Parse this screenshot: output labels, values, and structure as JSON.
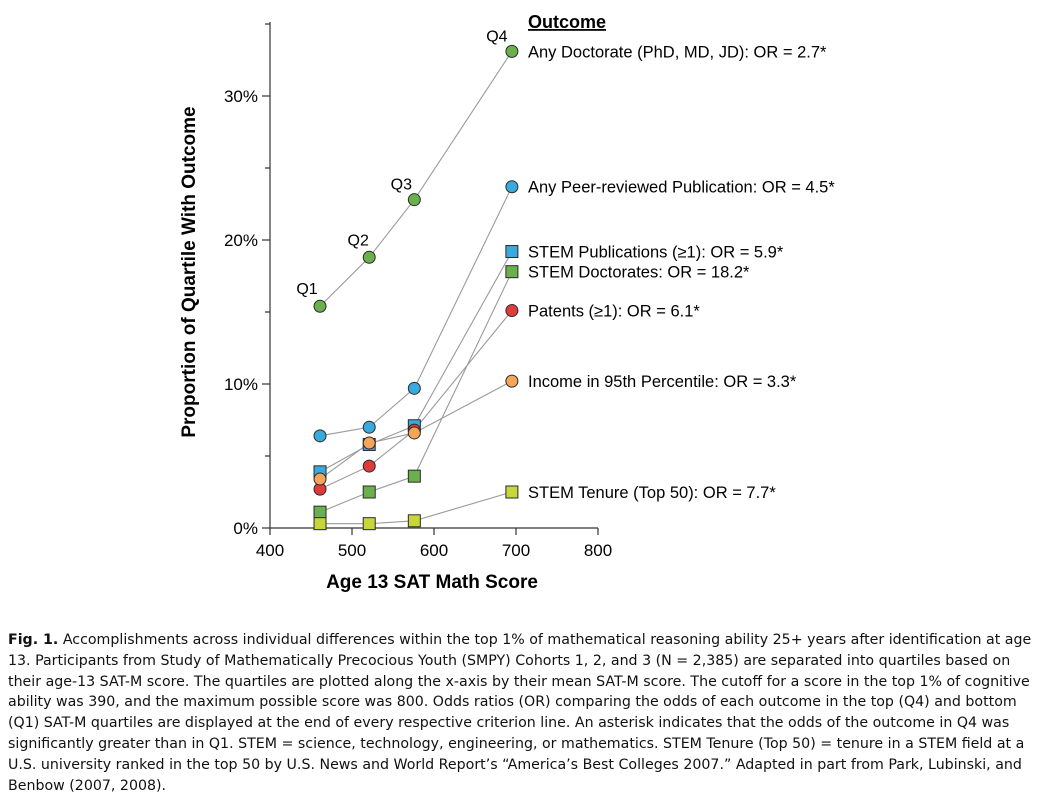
{
  "chart_data": {
    "type": "line",
    "ylabel": "Proportion of Quartile With Outcome",
    "xlabel": "Age 13 SAT Math Score",
    "xlim": [
      400,
      800
    ],
    "ylim": [
      0,
      35
    ],
    "xticks": [
      400,
      500,
      600,
      700,
      800
    ],
    "yticks": [
      0,
      10,
      20,
      30
    ],
    "ytick_labels": [
      "0%",
      "10%",
      "20%",
      "30%"
    ],
    "x": [
      461,
      521,
      576,
      695
    ],
    "quartile_labels": [
      "Q1",
      "Q2",
      "Q3",
      "Q4"
    ],
    "legend_title": "Outcome",
    "series": [
      {
        "name": "Any Doctorate  (PhD, MD, JD): OR = 2.7*",
        "values": [
          15.4,
          18.8,
          22.8,
          33.1
        ],
        "color": "#6ab04c",
        "marker": "circle"
      },
      {
        "name": "Any Peer-reviewed Publication: OR = 4.5*",
        "values": [
          6.4,
          7.0,
          9.7,
          23.7
        ],
        "color": "#3aa9dc",
        "marker": "circle"
      },
      {
        "name": "STEM Publications (≥1): OR = 5.9*",
        "values": [
          3.9,
          5.8,
          7.1,
          19.2
        ],
        "color": "#3aa9dc",
        "marker": "square"
      },
      {
        "name": "STEM Doctorates: OR = 18.2*",
        "values": [
          1.1,
          2.5,
          3.6,
          17.8
        ],
        "color": "#6ab04c",
        "marker": "square"
      },
      {
        "name": "Patents (≥1): OR = 6.1*",
        "values": [
          2.7,
          4.3,
          6.8,
          15.1
        ],
        "color": "#e03b3b",
        "marker": "circle"
      },
      {
        "name": "Income in 95th Percentile: OR = 3.3*",
        "values": [
          3.4,
          5.9,
          6.6,
          10.2
        ],
        "color": "#f5a55a",
        "marker": "circle"
      },
      {
        "name": "STEM Tenure (Top 50): OR = 7.7*",
        "values": [
          0.3,
          0.3,
          0.5,
          2.5
        ],
        "color": "#c7d63a",
        "marker": "square"
      }
    ]
  },
  "caption": {
    "fig_label": "Fig. 1.",
    "text": " Accomplishments across individual differences within the top 1% of mathematical reasoning ability 25+ years after identification at age 13. Participants from Study of Mathematically Precocious Youth (SMPY) Cohorts 1, 2, and 3 (N = 2,385) are separated into quartiles based on their age-13 SAT-M score. The quartiles are plotted along the x-axis by their mean SAT-M score. The cutoff for a score in the top 1% of cognitive ability was 390, and the maximum possible score was 800. Odds ratios (OR) comparing the odds of each outcome in the top (Q4) and bottom (Q1) SAT-M quartiles are displayed at the end of every respective criterion line. An asterisk indicates that the odds of the outcome in Q4 was significantly greater than in Q1. STEM = science, technology, engineering, or mathematics. STEM Tenure (Top 50) = tenure in a STEM field at a U.S. university ranked in the top 50 by U.S. News and World Report’s “America’s Best Colleges 2007.” Adapted in part from Park, Lubinski, and Benbow (2007, 2008)."
  }
}
